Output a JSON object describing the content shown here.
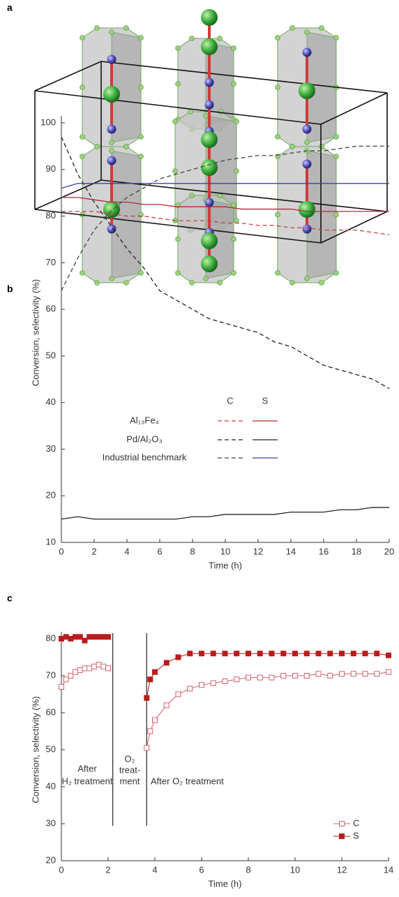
{
  "structure_panel": {
    "label": "a"
  },
  "chart_data": [
    {
      "type": "line",
      "panel_label": "b",
      "x_label": "Time (h)",
      "y_label": "Conversion, selectivity (%)",
      "x": [
        0,
        1,
        2,
        3,
        4,
        5,
        6,
        7,
        8,
        9,
        10,
        11,
        12,
        13,
        14,
        15,
        16,
        17,
        18,
        19,
        20
      ],
      "xlim": [
        0,
        20
      ],
      "xticks": [
        0,
        2,
        4,
        6,
        8,
        10,
        12,
        14,
        16,
        18,
        20
      ],
      "ylim": [
        10,
        100
      ],
      "yticks": [
        10,
        20,
        30,
        40,
        50,
        60,
        70,
        80,
        90,
        100
      ],
      "legend_columns": [
        "C",
        "S"
      ],
      "series": [
        {
          "name": "Al₁₃Fe₄",
          "lines": [
            {
              "style": "dashed",
              "color": "#c8404a",
              "values": [
                81,
                81,
                81,
                80.5,
                80,
                80,
                79.5,
                79,
                79,
                79,
                78.5,
                78.5,
                78,
                78,
                77.5,
                77.5,
                77,
                77,
                77,
                76.5,
                76
              ]
            },
            {
              "style": "solid",
              "color": "#b02a33",
              "values": [
                84,
                84,
                83.5,
                83,
                83,
                82.5,
                82.5,
                82,
                82,
                82,
                82,
                81.5,
                81.5,
                81.5,
                81.5,
                81,
                81,
                81,
                81,
                81,
                81
              ]
            }
          ]
        },
        {
          "name": "Pd/Al₂O₃",
          "lines": [
            {
              "style": "dashed",
              "color": "#222222",
              "values": [
                97,
                89,
                83,
                78,
                73,
                69,
                64,
                62,
                60,
                58,
                57,
                56,
                55,
                53,
                52,
                50,
                48,
                47,
                46,
                45,
                43
              ]
            },
            {
              "style": "solid",
              "color": "#222222",
              "values": [
                15,
                15.5,
                15,
                15,
                15,
                15,
                15,
                15,
                15.5,
                15.5,
                16,
                16,
                16,
                16,
                16.5,
                16.5,
                16.5,
                17,
                17,
                17.5,
                17.5
              ]
            }
          ]
        },
        {
          "name": "Industrial benchmark",
          "lines": [
            {
              "style": "dashed",
              "color": "#444444",
              "values": [
                64,
                71,
                77,
                81,
                84,
                86,
                88,
                89,
                90,
                91,
                92,
                92.5,
                93,
                93,
                93.5,
                94,
                94,
                94.5,
                95,
                95,
                95
              ]
            },
            {
              "style": "solid",
              "color": "#3a44a0",
              "values": [
                86,
                87,
                87,
                87,
                87,
                87,
                87,
                87,
                87,
                87,
                87,
                87,
                87,
                87,
                87,
                87,
                87,
                87,
                87,
                87,
                87
              ]
            }
          ]
        }
      ]
    },
    {
      "type": "scatter",
      "panel_label": "c",
      "x_label": "Time (h)",
      "y_label": "Conversion, selectivity (%)",
      "x": [
        0,
        0.2,
        0.4,
        0.6,
        0.8,
        1.0,
        1.2,
        1.4,
        1.6,
        1.8,
        2.0,
        3.0,
        3.65,
        3.8,
        4.0,
        4.5,
        5,
        5.5,
        6,
        6.5,
        7,
        7.5,
        8,
        8.5,
        9,
        9.5,
        10,
        10.5,
        11,
        11.5,
        12,
        12.5,
        13,
        13.5,
        14
      ],
      "xlim": [
        0,
        14
      ],
      "xticks": [
        0,
        2,
        4,
        6,
        8,
        10,
        12,
        14
      ],
      "ylim": [
        20,
        80
      ],
      "yticks": [
        20,
        30,
        40,
        50,
        60,
        70,
        80
      ],
      "dividers": [
        2.2,
        3.65
      ],
      "annotations": [
        [
          "After",
          "H₂ treatment"
        ],
        [
          "O₂",
          "treat-",
          "ment"
        ],
        [
          "After O₂ treatment"
        ]
      ],
      "series": [
        {
          "name": "C",
          "color": "#d0606a",
          "marker": "open",
          "values": [
            67,
            69,
            70,
            71,
            71.5,
            72,
            72,
            72.5,
            73,
            72.5,
            72,
            null,
            50.5,
            55,
            58,
            62,
            65,
            66.5,
            67.5,
            68,
            68.5,
            69,
            69.5,
            69.5,
            69.5,
            70,
            70,
            70,
            70.5,
            70,
            70.5,
            70.5,
            70.5,
            70.5,
            71
          ]
        },
        {
          "name": "S",
          "color": "#b81c1c",
          "marker": "filled",
          "values": [
            80,
            80.5,
            80,
            80.5,
            80.5,
            79.5,
            80.5,
            80.5,
            80.5,
            80.5,
            80.5,
            null,
            64,
            69,
            71,
            73.5,
            75,
            76,
            76,
            76,
            76,
            76,
            76,
            76,
            76,
            76,
            76,
            76,
            76,
            76,
            76,
            76,
            76,
            76,
            75.5
          ]
        }
      ]
    }
  ]
}
